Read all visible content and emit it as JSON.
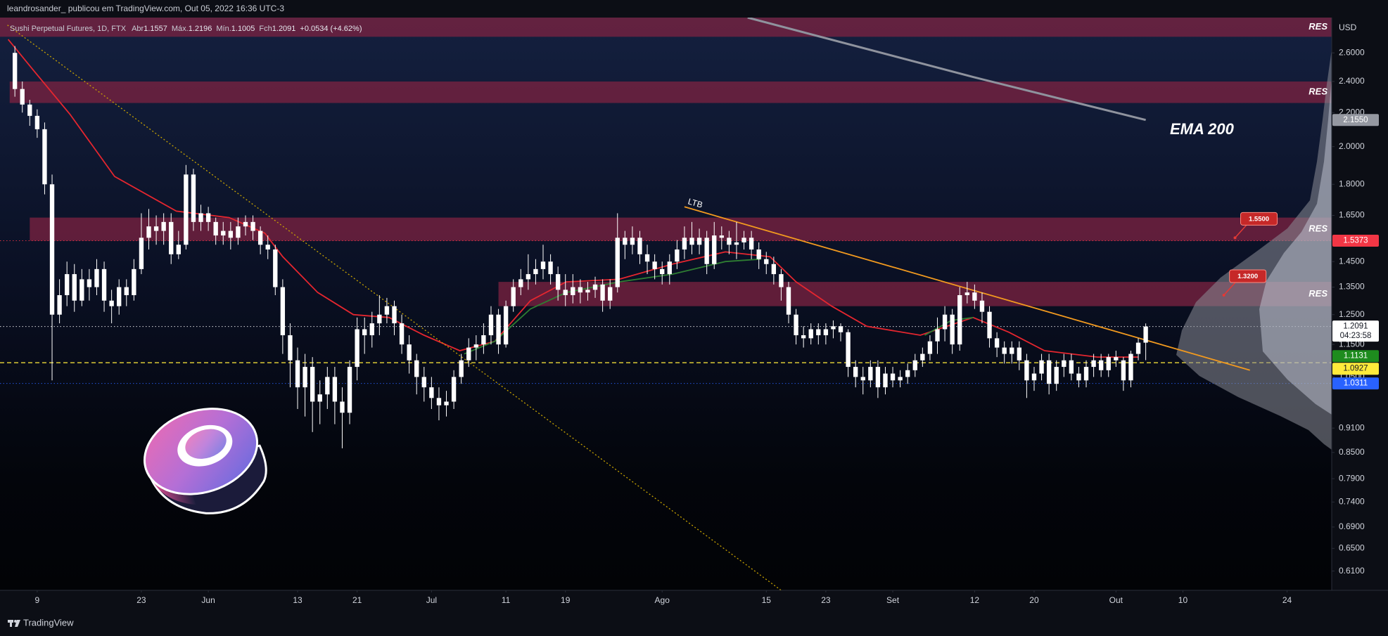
{
  "header": {
    "publisher": "leandrosander_ publicou em TradingView.com, Out 05, 2022 16:36 UTC-3",
    "symbol": "Sushi Perpetual Futures, 1D, FTX",
    "ohlc": [
      {
        "name": "Abr",
        "value": "1.1557"
      },
      {
        "name": "Máx.",
        "value": "1.2196"
      },
      {
        "name": "Mín.",
        "value": "1.1005"
      },
      {
        "name": "Fch",
        "value": "1.2091"
      }
    ],
    "change": "+0.0534 (+4.62%)"
  },
  "footer": {
    "brand": "TradingView"
  },
  "chart_data": {
    "type": "candlestick",
    "log_scale": true,
    "grid": false,
    "axis_unit": "USD",
    "up_color": "#ffffff",
    "down_color": "#ffffff",
    "x": [
      -3,
      -2,
      -1,
      0,
      1,
      2,
      3,
      4,
      5,
      6,
      7,
      8,
      9,
      10,
      11,
      12,
      13,
      14,
      15,
      16,
      17,
      18,
      19,
      20,
      21,
      22,
      23,
      24,
      25,
      26,
      27,
      28,
      29,
      30,
      31,
      32,
      33,
      34,
      35,
      36,
      37,
      38,
      39,
      40,
      41,
      42,
      43,
      44,
      45,
      46,
      47,
      48,
      49,
      50,
      51,
      52,
      53,
      54,
      55,
      56,
      57,
      58,
      59,
      60,
      61,
      62,
      63,
      64,
      65,
      66,
      67,
      68,
      69,
      70,
      71,
      72,
      73,
      74,
      75,
      76,
      77,
      78,
      79,
      80,
      81,
      82,
      83,
      84,
      85,
      86,
      87,
      88,
      89,
      90,
      91,
      92,
      93,
      94,
      95,
      96,
      97,
      98,
      99,
      100,
      101,
      102,
      103,
      104,
      105,
      106,
      107,
      108,
      109,
      110,
      111,
      112,
      113,
      114,
      115,
      116,
      117,
      118,
      119,
      120,
      121,
      122,
      123,
      124,
      125,
      126,
      127,
      128,
      129,
      130,
      131,
      132,
      133,
      134,
      135,
      136,
      137,
      138,
      139,
      140,
      141,
      142,
      143,
      144,
      145,
      146,
      147,
      148,
      149
    ],
    "open": [
      2.6,
      2.35,
      2.25,
      2.18,
      2.1,
      1.8,
      1.25,
      1.32,
      1.4,
      1.3,
      1.38,
      1.35,
      1.42,
      1.3,
      1.28,
      1.35,
      1.32,
      1.42,
      1.55,
      1.6,
      1.58,
      1.62,
      1.48,
      1.52,
      1.85,
      1.62,
      1.66,
      1.62,
      1.56,
      1.58,
      1.55,
      1.6,
      1.62,
      1.58,
      1.52,
      1.5,
      1.35,
      1.18,
      1.1,
      1.02,
      1.08,
      0.98,
      1.0,
      1.05,
      0.98,
      0.95,
      1.08,
      1.2,
      1.18,
      1.22,
      1.25,
      1.28,
      1.22,
      1.15,
      1.1,
      1.05,
      1.02,
      0.99,
      0.97,
      0.98,
      1.05,
      1.1,
      1.14,
      1.15,
      1.18,
      1.25,
      1.15,
      1.28,
      1.35,
      1.38,
      1.4,
      1.42,
      1.45,
      1.4,
      1.34,
      1.32,
      1.35,
      1.33,
      1.34,
      1.36,
      1.3,
      1.35,
      1.55,
      1.52,
      1.55,
      1.48,
      1.45,
      1.42,
      1.4,
      1.45,
      1.5,
      1.55,
      1.52,
      1.55,
      1.44,
      1.56,
      1.55,
      1.52,
      1.53,
      1.55,
      1.5,
      1.46,
      1.44,
      1.4,
      1.35,
      1.25,
      1.18,
      1.17,
      1.2,
      1.18,
      1.2,
      1.21,
      1.19,
      1.08,
      1.05,
      1.04,
      1.08,
      1.02,
      1.06,
      1.04,
      1.05,
      1.07,
      1.1,
      1.12,
      1.16,
      1.2,
      1.25,
      1.15,
      1.32,
      1.33,
      1.3,
      1.26,
      1.17,
      1.14,
      1.12,
      1.14,
      1.1,
      1.04,
      1.06,
      1.1,
      1.03,
      1.08,
      1.1,
      1.06,
      1.04,
      1.08,
      1.1,
      1.07,
      1.11,
      1.1,
      1.04,
      1.12,
      1.1557
    ],
    "high": [
      2.65,
      2.4,
      2.28,
      2.22,
      2.14,
      1.85,
      1.38,
      1.45,
      1.44,
      1.42,
      1.42,
      1.46,
      1.45,
      1.34,
      1.38,
      1.38,
      1.46,
      1.66,
      1.68,
      1.65,
      1.66,
      1.66,
      1.58,
      1.9,
      1.88,
      1.7,
      1.69,
      1.64,
      1.62,
      1.62,
      1.64,
      1.65,
      1.65,
      1.6,
      1.56,
      1.52,
      1.38,
      1.22,
      1.14,
      1.12,
      1.11,
      1.04,
      1.08,
      1.08,
      1.02,
      1.1,
      1.24,
      1.24,
      1.26,
      1.32,
      1.31,
      1.3,
      1.25,
      1.18,
      1.12,
      1.08,
      1.05,
      1.02,
      1.01,
      1.07,
      1.12,
      1.17,
      1.18,
      1.22,
      1.28,
      1.27,
      1.3,
      1.38,
      1.42,
      1.48,
      1.46,
      1.52,
      1.48,
      1.43,
      1.4,
      1.4,
      1.38,
      1.37,
      1.39,
      1.38,
      1.38,
      1.66,
      1.58,
      1.6,
      1.58,
      1.52,
      1.48,
      1.45,
      1.48,
      1.54,
      1.6,
      1.62,
      1.59,
      1.58,
      1.62,
      1.6,
      1.58,
      1.62,
      1.58,
      1.58,
      1.53,
      1.49,
      1.47,
      1.42,
      1.37,
      1.27,
      1.21,
      1.22,
      1.22,
      1.22,
      1.23,
      1.22,
      1.2,
      1.1,
      1.08,
      1.1,
      1.1,
      1.08,
      1.08,
      1.07,
      1.09,
      1.12,
      1.14,
      1.18,
      1.24,
      1.28,
      1.27,
      1.35,
      1.37,
      1.36,
      1.33,
      1.28,
      1.19,
      1.16,
      1.16,
      1.16,
      1.12,
      1.08,
      1.12,
      1.12,
      1.1,
      1.12,
      1.12,
      1.08,
      1.1,
      1.12,
      1.12,
      1.12,
      1.13,
      1.11,
      1.13,
      1.17,
      1.2196
    ],
    "low": [
      2.3,
      2.2,
      2.12,
      2.05,
      1.75,
      1.04,
      1.22,
      1.28,
      1.26,
      1.28,
      1.3,
      1.32,
      1.26,
      1.22,
      1.25,
      1.28,
      1.3,
      1.4,
      1.5,
      1.52,
      1.52,
      1.44,
      1.46,
      1.5,
      1.58,
      1.58,
      1.58,
      1.52,
      1.52,
      1.5,
      1.52,
      1.56,
      1.54,
      1.48,
      1.46,
      1.32,
      1.12,
      1.02,
      0.96,
      0.94,
      0.9,
      0.92,
      0.96,
      0.92,
      0.86,
      0.92,
      1.04,
      1.12,
      1.14,
      1.18,
      1.22,
      1.18,
      1.12,
      1.06,
      1.0,
      0.98,
      0.96,
      0.93,
      0.94,
      0.96,
      1.03,
      1.08,
      1.1,
      1.12,
      1.15,
      1.12,
      1.14,
      1.26,
      1.32,
      1.34,
      1.36,
      1.38,
      1.36,
      1.3,
      1.28,
      1.29,
      1.29,
      1.3,
      1.31,
      1.26,
      1.27,
      1.33,
      1.46,
      1.48,
      1.44,
      1.4,
      1.38,
      1.36,
      1.36,
      1.42,
      1.46,
      1.48,
      1.48,
      1.4,
      1.42,
      1.5,
      1.48,
      1.46,
      1.5,
      1.46,
      1.42,
      1.4,
      1.36,
      1.3,
      1.22,
      1.15,
      1.14,
      1.15,
      1.15,
      1.15,
      1.17,
      1.16,
      1.05,
      1.02,
      1.0,
      1.02,
      0.99,
      1.0,
      1.02,
      1.02,
      1.03,
      1.05,
      1.08,
      1.1,
      1.12,
      1.16,
      1.12,
      1.13,
      1.29,
      1.27,
      1.22,
      1.14,
      1.11,
      1.09,
      1.09,
      1.07,
      0.99,
      1.01,
      1.04,
      1.0,
      1.01,
      1.05,
      1.04,
      1.02,
      1.02,
      1.05,
      1.05,
      1.05,
      1.08,
      1.01,
      1.02,
      1.1,
      1.1005
    ],
    "close": [
      2.35,
      2.25,
      2.18,
      2.1,
      1.8,
      1.25,
      1.32,
      1.4,
      1.3,
      1.38,
      1.35,
      1.42,
      1.3,
      1.28,
      1.35,
      1.32,
      1.42,
      1.55,
      1.6,
      1.58,
      1.62,
      1.48,
      1.52,
      1.85,
      1.62,
      1.66,
      1.62,
      1.56,
      1.58,
      1.55,
      1.6,
      1.62,
      1.58,
      1.52,
      1.5,
      1.35,
      1.18,
      1.1,
      1.02,
      1.08,
      0.98,
      1.0,
      1.05,
      0.98,
      0.95,
      1.08,
      1.2,
      1.18,
      1.22,
      1.25,
      1.28,
      1.22,
      1.15,
      1.1,
      1.05,
      1.02,
      0.99,
      0.97,
      0.98,
      1.05,
      1.1,
      1.14,
      1.15,
      1.18,
      1.25,
      1.15,
      1.28,
      1.35,
      1.38,
      1.4,
      1.42,
      1.45,
      1.4,
      1.34,
      1.32,
      1.35,
      1.33,
      1.34,
      1.36,
      1.3,
      1.35,
      1.55,
      1.52,
      1.55,
      1.48,
      1.45,
      1.42,
      1.4,
      1.45,
      1.5,
      1.55,
      1.52,
      1.55,
      1.44,
      1.56,
      1.55,
      1.52,
      1.53,
      1.55,
      1.5,
      1.46,
      1.44,
      1.4,
      1.35,
      1.25,
      1.18,
      1.17,
      1.2,
      1.18,
      1.2,
      1.21,
      1.19,
      1.08,
      1.05,
      1.04,
      1.08,
      1.02,
      1.06,
      1.04,
      1.05,
      1.07,
      1.1,
      1.12,
      1.16,
      1.2,
      1.25,
      1.15,
      1.32,
      1.33,
      1.3,
      1.26,
      1.17,
      1.14,
      1.12,
      1.14,
      1.1,
      1.04,
      1.06,
      1.1,
      1.03,
      1.08,
      1.1,
      1.06,
      1.04,
      1.08,
      1.1,
      1.07,
      1.11,
      1.1,
      1.04,
      1.12,
      1.1557,
      1.2091
    ],
    "xlim": [
      -5,
      174
    ],
    "xticks": [
      {
        "value": 0,
        "label": "9"
      },
      {
        "value": 14,
        "label": "23"
      },
      {
        "value": 23,
        "label": "Jun"
      },
      {
        "value": 35,
        "label": "13"
      },
      {
        "value": 43,
        "label": "21"
      },
      {
        "value": 53,
        "label": "Jul"
      },
      {
        "value": 63,
        "label": "11"
      },
      {
        "value": 71,
        "label": "19"
      },
      {
        "value": 84,
        "label": "Ago"
      },
      {
        "value": 98,
        "label": "15"
      },
      {
        "value": 106,
        "label": "23"
      },
      {
        "value": 115,
        "label": "Set"
      },
      {
        "value": 126,
        "label": "12"
      },
      {
        "value": 134,
        "label": "20"
      },
      {
        "value": 145,
        "label": "Out"
      },
      {
        "value": 154,
        "label": "10"
      },
      {
        "value": 168,
        "label": "24"
      }
    ],
    "ylim": [
      0.578,
      2.87
    ],
    "yticks": [
      {
        "value": 2.6,
        "label": "2.6000"
      },
      {
        "value": 2.4,
        "label": "2.4000"
      },
      {
        "value": 2.2,
        "label": "2.2000"
      },
      {
        "value": 2.0,
        "label": "2.0000"
      },
      {
        "value": 1.8,
        "label": "1.8000"
      },
      {
        "value": 1.65,
        "label": "1.6500"
      },
      {
        "value": 1.45,
        "label": "1.4500"
      },
      {
        "value": 1.35,
        "label": "1.3500"
      },
      {
        "value": 1.25,
        "label": "1.2500"
      },
      {
        "value": 1.15,
        "label": "1.1500"
      },
      {
        "value": 1.05,
        "label": "1.0500"
      },
      {
        "value": 0.91,
        "label": "0.9100"
      },
      {
        "value": 0.85,
        "label": "0.8500"
      },
      {
        "value": 0.79,
        "label": "0.7900"
      },
      {
        "value": 0.74,
        "label": "0.7400"
      },
      {
        "value": 0.69,
        "label": "0.6900"
      },
      {
        "value": 0.65,
        "label": "0.6500"
      },
      {
        "value": 0.61,
        "label": "0.6100"
      }
    ],
    "zones": [
      {
        "ymin": 2.72,
        "ymax": 2.87,
        "xstart": -5,
        "label": "RES",
        "color": "#7d2342"
      },
      {
        "ymin": 2.26,
        "ymax": 2.4,
        "xstart": -3.7,
        "label": "RES",
        "color": "#7d2342"
      },
      {
        "ymin": 1.537,
        "ymax": 1.64,
        "xstart": -1,
        "label": "RES",
        "color": "#7d2342"
      },
      {
        "ymin": 1.28,
        "ymax": 1.37,
        "xstart": 62,
        "label": "RES",
        "color": "#7d2342"
      }
    ],
    "overlays": [
      {
        "color": "#e5262f",
        "style": "solid",
        "x": [
          -3.9,
          -0.4,
          4.4,
          10.4,
          18.7,
          25.8,
          30.6,
          33,
          37.7,
          42.5,
          47.3,
          52,
          56.8,
          61.5,
          66.3,
          71.1,
          78.2,
          85.4,
          92.5,
          98.5,
          102,
          106.8,
          111.5,
          118.7,
          125.8,
          130.6,
          135.4,
          142.5,
          148
        ],
        "values": [
          2.7,
          2.47,
          2.19,
          1.84,
          1.67,
          1.64,
          1.57,
          1.47,
          1.33,
          1.25,
          1.24,
          1.18,
          1.13,
          1.16,
          1.3,
          1.37,
          1.38,
          1.44,
          1.49,
          1.47,
          1.37,
          1.28,
          1.21,
          1.18,
          1.24,
          1.19,
          1.13,
          1.11,
          1.11
        ]
      },
      {
        "color": "#2e7d32",
        "style": "solid",
        "x": [
          57.4,
          61.5,
          66.3,
          71.1,
          78.2,
          85.4,
          92.5,
          97.3,
          110,
          119.3,
          122.9,
          125.8
        ],
        "values": [
          1.12,
          1.16,
          1.27,
          1.33,
          1.37,
          1.4,
          1.45,
          1.46,
          null,
          1.18,
          1.23,
          1.24
        ]
      },
      {
        "color": "#8f939e",
        "style": "thick",
        "x": [
          95.5,
          125.8,
          149
        ],
        "values": [
          2.87,
          2.43,
          2.155
        ]
      },
      {
        "color": "#f29a1f",
        "style": "solid",
        "x": [
          87,
          163
        ],
        "values": [
          1.69,
          1.07
        ]
      },
      {
        "color": "#c9a400",
        "style": "dotted",
        "x": [
          -4,
          100
        ],
        "values": [
          2.81,
          0.578
        ]
      }
    ],
    "price_tags": [
      {
        "value": 2.155,
        "label": "2.1550",
        "color": "#9598a1",
        "text_color": "#ffffff"
      },
      {
        "value": 1.5373,
        "label": "1.5373",
        "color": "#f23645",
        "text_color": "#ffffff",
        "line": "dotted"
      },
      {
        "value": 1.2091,
        "label": "1.2091",
        "sub_label": "04:23:58",
        "color": "#ffffff",
        "text_color": "#131722",
        "line": "dotted"
      },
      {
        "value": 1.1131,
        "label": "1.1131",
        "color": "#1e8c1e",
        "text_color": "#ffffff"
      },
      {
        "value": 1.0927,
        "label": "1.0927",
        "color": "#ffeb3b",
        "text_color": "#131722",
        "line": "dashed"
      },
      {
        "value": 1.0311,
        "label": "1.0311",
        "color": "#2962ff",
        "text_color": "#ffffff",
        "line": "dotted"
      }
    ],
    "callouts": [
      {
        "x": 161,
        "value": 1.55,
        "label": "1.5500"
      },
      {
        "x": 159.5,
        "value": 1.32,
        "label": "1.3200"
      }
    ],
    "annotations": [
      {
        "text": "EMA 200"
      },
      {
        "text": "LTB"
      }
    ]
  }
}
